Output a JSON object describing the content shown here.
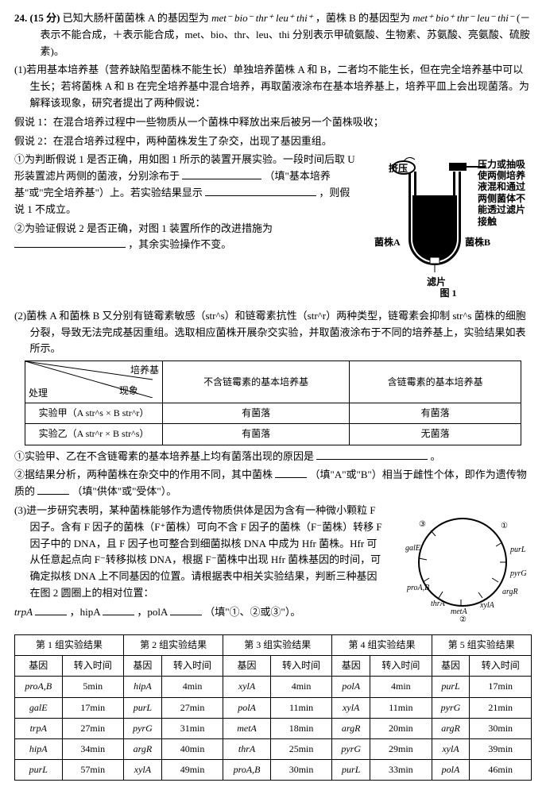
{
  "question_no": "24.",
  "points": "(15 分)",
  "stem_a": "已知大肠杆菌菌株 A 的基因型为",
  "geno_a": "met⁻ bio⁻ thr⁺ leu⁺ thi⁺",
  "stem_b": "，菌株 B 的基因型为",
  "geno_b": "met⁺ bio⁺ thr⁻ leu⁻ thi⁻",
  "stem_c": "(－表示不能合成，＋表示能合成，met、bio、thr、leu、thi 分别表示甲硫氨酸、生物素、苏氨酸、亮氨酸、硫胺素)。",
  "p1": {
    "lead": "(1)若用基本培养基（营养缺陷型菌株不能生长）单独培养菌株 A 和 B，二者均不能生长，但在完全培养基中可以生长；若将菌株 A 和 B 在完全培养基中混合培养，再取菌液涂布在基本培养基上，培养平皿上会出现菌落。为解释该现象，研究者提出了两种假说：",
    "h1": "假说 1：在混合培养过程中一些物质从一个菌株中释放出来后被另一个菌株吸收；",
    "h2": "假说 2：在混合培养过程中，两种菌株发生了杂交，出现了基因重组。",
    "q1a": "①为判断假说 1 是否正确，用如图 1 所示的装置开展实验。一段时间后取 U 形装置滤片两侧的菌液，分别涂布于",
    "q1b": "（填\"基本培养基\"或\"完全培养基\"）上。若实验结果显示",
    "q1c": "，则假说 1 不成立。",
    "q2a": "②为验证假说 2 是否正确，对图 1 装置所作的改进措施为",
    "q2b": "，其余实验操作不变。",
    "fig_labels": {
      "pinch": "挤压",
      "note": "压力或抽吸使两侧培养液混和通过两侧菌体不能透过滤片接触",
      "left": "菌株A",
      "right": "菌株B",
      "filter": "滤片",
      "caption": "图 1"
    }
  },
  "p2": {
    "lead": "(2)菌株 A 和菌株 B 又分别有链霉素敏感（str^s）和链霉素抗性（str^r）两种类型，链霉素会抑制 str^s 菌株的细胞分裂，导致无法完成基因重组。选取相应菌株开展杂交实验，并取菌液涂布于不同的培养基上，实验结果如表所示。",
    "table": {
      "rhead1": "培养基",
      "rhead2": "现象",
      "rhead3": "处理",
      "col1": "不含链霉素的基本培养基",
      "col2": "含链霉素的基本培养基",
      "r1lab": "实验甲（A str^s × B str^r）",
      "r2lab": "实验乙（A str^r × B str^s）",
      "yes": "有菌落",
      "no": "无菌落"
    },
    "q1a": "①实验甲、乙在不含链霉素的基本培养基上均有菌落出现的原因是",
    "q1b": "。",
    "q2a": "②据结果分析，两种菌株在杂交中的作用不同，其中菌株",
    "q2b": "（填\"A\"或\"B\"）相当于雌性个体，即作为遗传物质的",
    "q2c": "（填\"供体\"或\"受体\"）。"
  },
  "p3": {
    "lead": "(3)进一步研究表明，某种菌株能够作为遗传物质供体是因为含有一种微小颗粒 F 因子。含有 F 因子的菌株（F⁺菌株）可向不含 F 因子的菌株（F⁻菌株）转移 F 因子中的 DNA，且 F 因子也可整合到细菌拟核 DNA 中成为 Hfr 菌株。Hfr 可从任意起点向 F⁻转移拟核 DNA，根据 F⁻菌株中出现 Hfr 菌株基因的时间，可确定拟核 DNA 上不同基因的位置。请根据表中相关实验结果，判断三种基因在图 2 圆圈上的相对位置：",
    "ask": "trpA",
    "ask2": "，hipA",
    "ask3": "，polA",
    "ask4": "（填\"①、②或③\"）。",
    "ring_labels": [
      "galE",
      "proA,B",
      "thrA",
      "metA",
      "②",
      "xylA",
      "argR",
      "pyrG",
      "purL",
      "①",
      "③"
    ],
    "table2": {
      "g": [
        "第 1 组实验结果",
        "第 2 组实验结果",
        "第 3 组实验结果",
        "第 4 组实验结果",
        "第 5 组实验结果"
      ],
      "h": [
        "基因",
        "转入时间"
      ],
      "rows": [
        [
          "proA,B",
          "5min",
          "hipA",
          "4min",
          "xylA",
          "4min",
          "polA",
          "4min",
          "purL",
          "17min"
        ],
        [
          "galE",
          "17min",
          "purL",
          "27min",
          "polA",
          "11min",
          "xylA",
          "11min",
          "pyrG",
          "21min"
        ],
        [
          "trpA",
          "27min",
          "pyrG",
          "31min",
          "metA",
          "18min",
          "argR",
          "20min",
          "argR",
          "30min"
        ],
        [
          "hipA",
          "34min",
          "argR",
          "40min",
          "thrA",
          "25min",
          "pyrG",
          "29min",
          "xylA",
          "39min"
        ],
        [
          "purL",
          "57min",
          "xylA",
          "49min",
          "proA,B",
          "30min",
          "purL",
          "33min",
          "polA",
          "46min"
        ]
      ]
    }
  }
}
